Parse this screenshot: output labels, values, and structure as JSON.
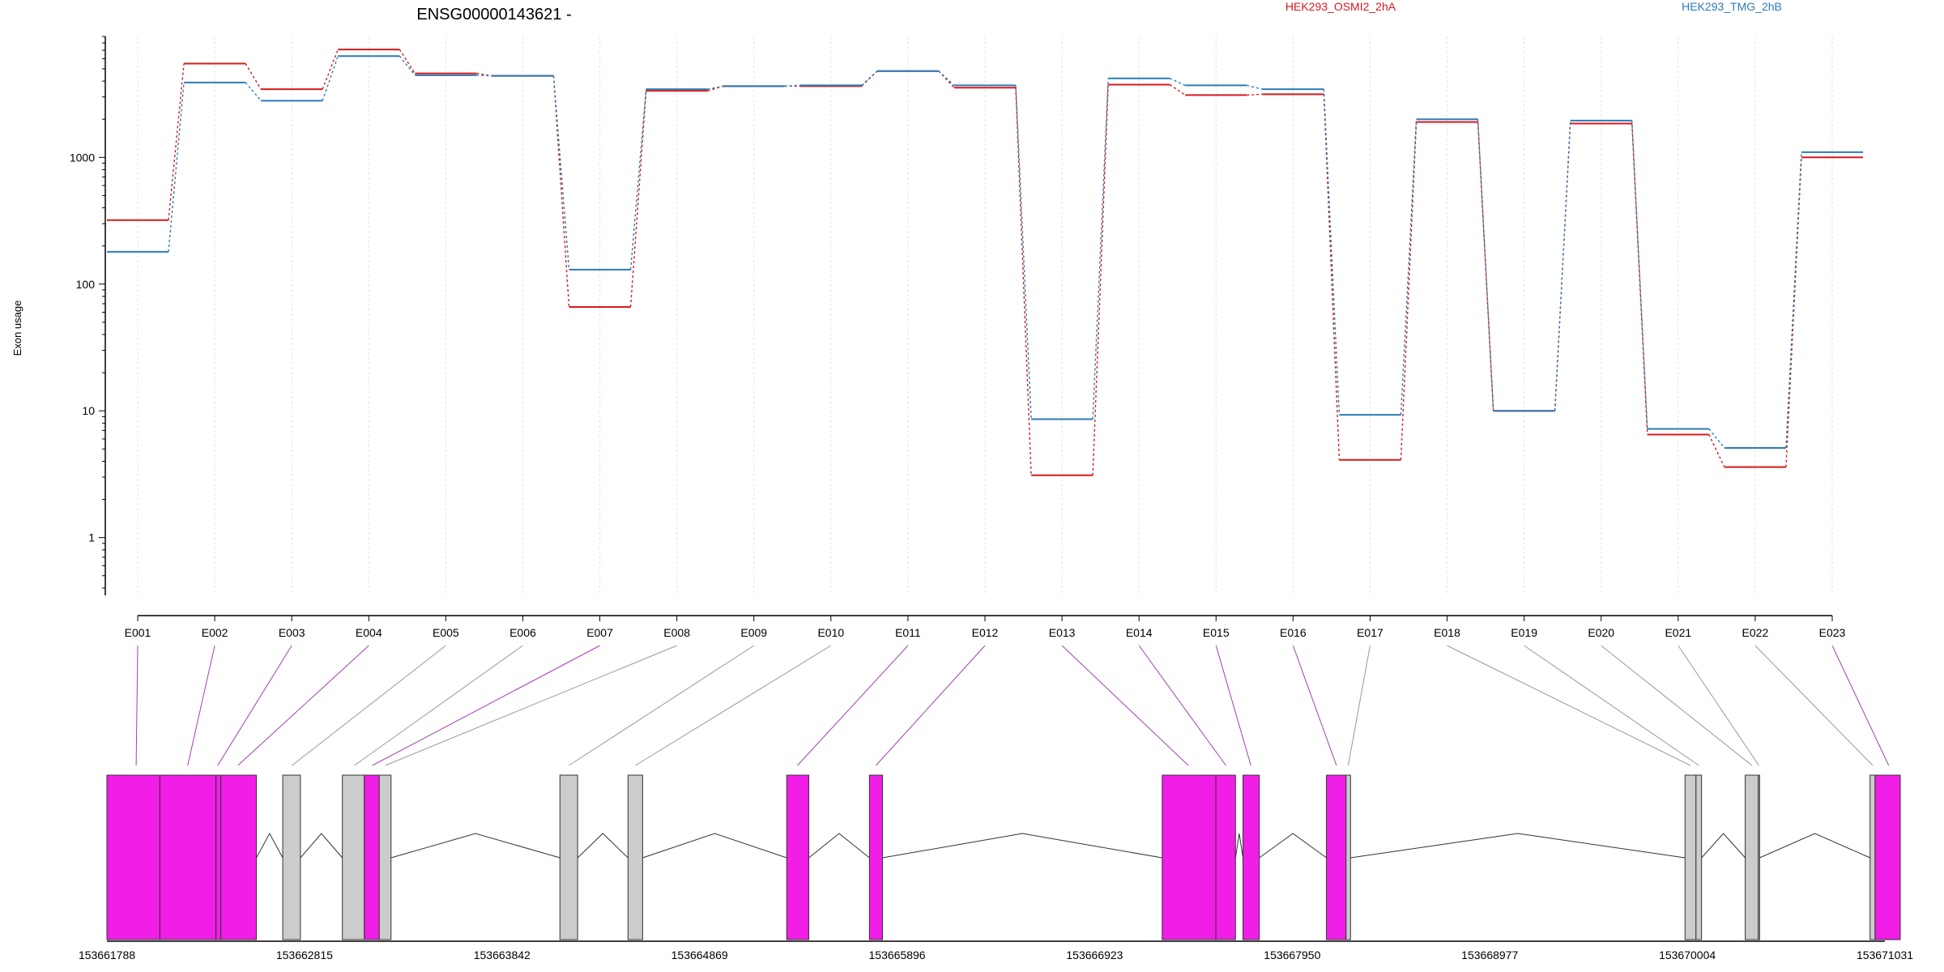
{
  "chart_data": {
    "type": "line",
    "title": "ENSG00000143621 -",
    "ylabel": "Exon usage",
    "ylog": true,
    "ylim": [
      0.35,
      9000
    ],
    "grid": "vertical",
    "legend_placement": "top-right",
    "yticks": [
      "1",
      "10",
      "100",
      "1000"
    ],
    "categories": [
      "E001",
      "E002",
      "E003",
      "E004",
      "E005",
      "E006",
      "E007",
      "E008",
      "E009",
      "E010",
      "E011",
      "E012",
      "E013",
      "E014",
      "E015",
      "E016",
      "E017",
      "E018",
      "E019",
      "E020",
      "E021",
      "E022",
      "E023"
    ],
    "series": [
      {
        "name": "HEK293_OSMI2_2hA",
        "color": "#d7191c",
        "values": [
          320,
          5500,
          3450,
          7100,
          4600,
          4400,
          66,
          3350,
          3650,
          3650,
          4800,
          3550,
          3.1,
          3750,
          3100,
          3150,
          4.1,
          1900,
          10,
          1850,
          6.5,
          3.6,
          1000
        ]
      },
      {
        "name": "HEK293_TMG_2hB",
        "color": "#2c7bb6",
        "values": [
          180,
          3900,
          2800,
          6300,
          4450,
          4400,
          130,
          3450,
          3650,
          3700,
          4800,
          3700,
          8.6,
          4200,
          3700,
          3450,
          9.3,
          2000,
          10,
          1950,
          7.2,
          5.1,
          1100
        ]
      }
    ],
    "genomic_axis": {
      "ticks": [
        "153661788",
        "153662815",
        "153663842",
        "153664869",
        "153665896",
        "153666923",
        "153667950",
        "153668977",
        "153670004",
        "153671031"
      ],
      "start": 153661788,
      "end": 153671031
    },
    "gene_model": {
      "highlight_color": "#f01ee6",
      "plain_color": "#cccccc",
      "exons": [
        {
          "start": 153661788,
          "end": 153662063,
          "hl": true
        },
        {
          "start": 153662063,
          "end": 153662355,
          "hl": true
        },
        {
          "start": 153662355,
          "end": 153662380,
          "hl": true
        },
        {
          "start": 153662380,
          "end": 153662565,
          "hl": true
        },
        {
          "start": 153662702,
          "end": 153662794,
          "hl": false
        },
        {
          "start": 153663012,
          "end": 153663126,
          "hl": false
        },
        {
          "start": 153663126,
          "end": 153663204,
          "hl": true
        },
        {
          "start": 153663204,
          "end": 153663265,
          "hl": false
        },
        {
          "start": 153664143,
          "end": 153664235,
          "hl": false
        },
        {
          "start": 153664497,
          "end": 153664573,
          "hl": false
        },
        {
          "start": 153665322,
          "end": 153665437,
          "hl": true
        },
        {
          "start": 153665752,
          "end": 153665820,
          "hl": true
        },
        {
          "start": 153667274,
          "end": 153667553,
          "hl": true
        },
        {
          "start": 153667553,
          "end": 153667655,
          "hl": true
        },
        {
          "start": 153667694,
          "end": 153667779,
          "hl": true
        },
        {
          "start": 153668128,
          "end": 153668230,
          "hl": true
        },
        {
          "start": 153668230,
          "end": 153668253,
          "hl": false
        },
        {
          "start": 153669992,
          "end": 153670049,
          "hl": false
        },
        {
          "start": 153670049,
          "end": 153670078,
          "hl": false
        },
        {
          "start": 153670305,
          "end": 153670373,
          "hl": false
        },
        {
          "start": 153670373,
          "end": 153670380,
          "hl": false
        },
        {
          "start": 153670954,
          "end": 153670980,
          "hl": false
        },
        {
          "start": 153670980,
          "end": 153671111,
          "hl": true
        }
      ],
      "connector_targets": [
        153661940,
        153662208,
        153662364,
        153662469,
        153662750,
        153663074,
        153663168,
        153663235,
        153664190,
        153664535,
        153665378,
        153665786,
        153667410,
        153667605,
        153667735,
        153668180,
        153668241,
        153670020,
        153670064,
        153670340,
        153670376,
        153670968,
        153671051
      ]
    }
  }
}
